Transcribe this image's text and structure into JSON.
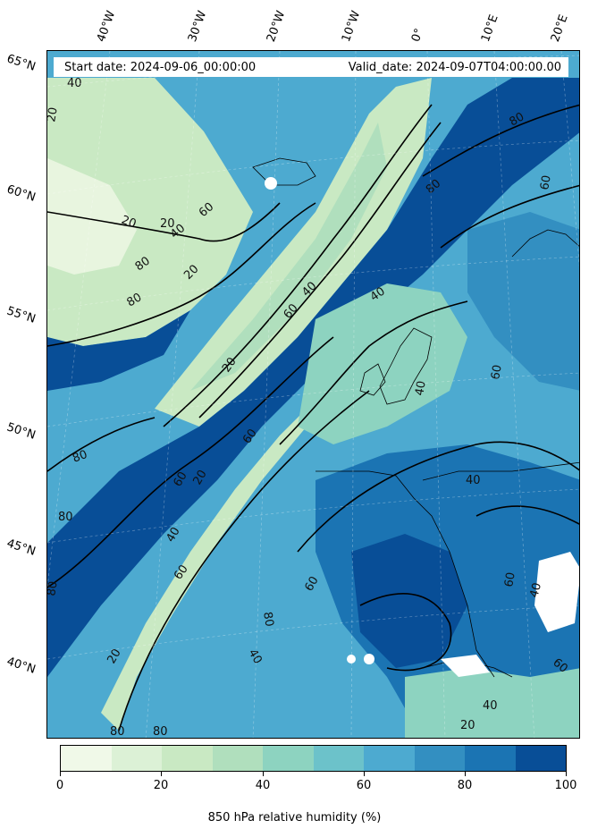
{
  "header": {
    "start_date": "Start date: 2024-09-06_00:00:00",
    "valid_date": "Valid_date: 2024-09-07T04:00:00.00"
  },
  "lon_labels": [
    "40°W",
    "30°W",
    "20°W",
    "10°W",
    "0°",
    "10°E",
    "20°E"
  ],
  "lat_labels": [
    "65°N",
    "60°N",
    "55°N",
    "50°N",
    "45°N",
    "40°N"
  ],
  "contour_labels": [
    "40",
    "20",
    "20",
    "20",
    "40",
    "60",
    "80",
    "20",
    "80",
    "40",
    "60",
    "80",
    "60",
    "20",
    "80",
    "40",
    "60",
    "80",
    "60",
    "20",
    "40",
    "80",
    "60",
    "40",
    "60",
    "80",
    "20",
    "80",
    "80",
    "40",
    "60",
    "80",
    "40",
    "60",
    "40",
    "60",
    "40",
    "20"
  ],
  "colorbar": {
    "label": "850 hPa relative humidity (%)",
    "ticks": [
      "0",
      "20",
      "40",
      "60",
      "80",
      "100"
    ],
    "levels": [
      0,
      10,
      20,
      30,
      40,
      50,
      60,
      70,
      80,
      90,
      100
    ],
    "colors": [
      "#f0f9e8",
      "#dcf1d6",
      "#c9e9c3",
      "#b0dfbd",
      "#8dd3c0",
      "#6cc2ca",
      "#4daad0",
      "#338fc1",
      "#1b74b3",
      "#084e97"
    ]
  },
  "map": {
    "ocean_base_color": "#4daad0",
    "coastline_color": "#000000",
    "contour_color": "#000000"
  }
}
